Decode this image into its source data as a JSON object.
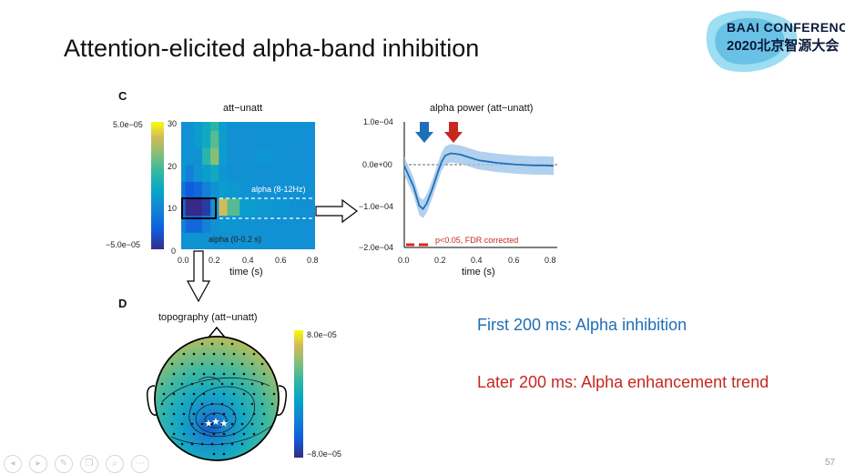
{
  "slide": {
    "title": "Attention-elicited alpha-band inhibition",
    "page_number": "57",
    "logo": {
      "line1": "BAAI CONFERENCE",
      "line2": "2020北京智源大会"
    },
    "note_blue": "First 200 ms: Alpha inhibition",
    "note_red": "Later 200 ms: Alpha enhancement trend",
    "colors": {
      "blue_note": "#1f6fb6",
      "red_note": "#c7281e"
    }
  },
  "panel_c": {
    "label": "C",
    "tf_map": {
      "title": "att−unatt",
      "colorbar_max": "5.0e−05",
      "colorbar_min": "−5.0e−05",
      "y_ticks": [
        "30",
        "20",
        "10",
        "0"
      ],
      "x_ticks": [
        "0.0",
        "0.2",
        "0.4",
        "0.6",
        "0.8"
      ],
      "x_label": "time (s)",
      "band_label": "alpha (8-12Hz)",
      "window_label": "alpha (0-0.2 s)"
    },
    "alpha_power": {
      "title": "alpha power (att−unatt)",
      "y_ticks": [
        "1.0e−04",
        "0.0e+00",
        "−1.0e−04",
        "−2.0e−04"
      ],
      "x_ticks": [
        "0.0",
        "0.2",
        "0.4",
        "0.6",
        "0.8"
      ],
      "x_label": "time (s)",
      "significance_label": "p<0.05, FDR corrected"
    }
  },
  "panel_d": {
    "label": "D",
    "title": "topography (att−unatt)",
    "colorbar_max": "8.0e−05",
    "colorbar_min": "−8.0e−05"
  },
  "toolbar": {
    "icons": [
      "prev-icon",
      "next-icon",
      "pen-icon",
      "copy-icon",
      "zoom-icon",
      "more-icon"
    ],
    "glyphs": [
      "◂",
      "▸",
      "✎",
      "❐",
      "⌕",
      "⋯"
    ]
  },
  "chart_data": [
    {
      "type": "heatmap",
      "title": "att−unatt",
      "xlabel": "time (s)",
      "ylabel": "",
      "xlim": [
        0.0,
        0.8
      ],
      "ylim": [
        0,
        30
      ],
      "x": [
        0.0,
        0.05,
        0.1,
        0.15,
        0.2,
        0.25,
        0.3,
        0.4,
        0.5,
        0.6,
        0.7,
        0.8
      ],
      "y": [
        2,
        6,
        10,
        14,
        18,
        22,
        26,
        30
      ],
      "values": [
        [
          -1.0,
          -0.5,
          -0.3,
          -0.5,
          -0.2,
          0.0,
          0.0,
          0.1,
          0.0,
          0.0,
          0.0,
          0.0
        ],
        [
          -2.0,
          -3.0,
          -3.0,
          -2.0,
          -0.3,
          0.3,
          0.2,
          0.1,
          0.0,
          0.0,
          0.0,
          0.0
        ],
        [
          -3.0,
          -5.0,
          -5.0,
          -4.5,
          -1.0,
          3.5,
          2.0,
          0.5,
          0.3,
          0.2,
          0.0,
          0.0
        ],
        [
          -2.5,
          -3.5,
          -3.0,
          -2.0,
          -0.2,
          0.5,
          0.3,
          0.1,
          0.0,
          0.0,
          0.0,
          0.0
        ],
        [
          -1.0,
          -2.0,
          -1.0,
          0.5,
          1.0,
          0.2,
          0.0,
          0.1,
          0.0,
          -0.2,
          0.0,
          0.0
        ],
        [
          -0.5,
          -1.0,
          0.0,
          1.5,
          2.5,
          0.5,
          0.0,
          0.0,
          0.2,
          0.0,
          0.0,
          0.0
        ],
        [
          0.0,
          0.0,
          0.5,
          1.0,
          2.0,
          0.5,
          0.0,
          0.0,
          0.0,
          0.0,
          0.0,
          0.0
        ],
        [
          0.0,
          0.0,
          0.5,
          1.0,
          1.5,
          0.5,
          0.0,
          0.0,
          0.0,
          0.0,
          0.0,
          0.0
        ]
      ],
      "colorbar_range": [
        -5e-05,
        5e-05
      ]
    },
    {
      "type": "line",
      "title": "alpha power (att−unatt)",
      "xlabel": "time (s)",
      "ylabel": "",
      "xlim": [
        0.0,
        0.8
      ],
      "ylim": [
        -0.0002,
        0.0001
      ],
      "series": [
        {
          "x": [
            0.0,
            0.05,
            0.08,
            0.1,
            0.12,
            0.15,
            0.18,
            0.2,
            0.22,
            0.25,
            0.3,
            0.35,
            0.4,
            0.45,
            0.5,
            0.55,
            0.6,
            0.65,
            0.7,
            0.75,
            0.8
          ],
          "values": [
            -5e-06,
            -5.5e-05,
            -0.0001,
            -0.000108,
            -9.5e-05,
            -6e-05,
            -2e-05,
            5e-06,
            2e-05,
            2.5e-05,
            2.2e-05,
            1.5e-05,
            8e-06,
            5e-06,
            2e-06,
            0.0,
            -2e-06,
            -3e-06,
            -4e-06,
            -4e-06,
            -5e-06
          ],
          "band_halfwidth": 2.2e-05
        }
      ]
    }
  ]
}
